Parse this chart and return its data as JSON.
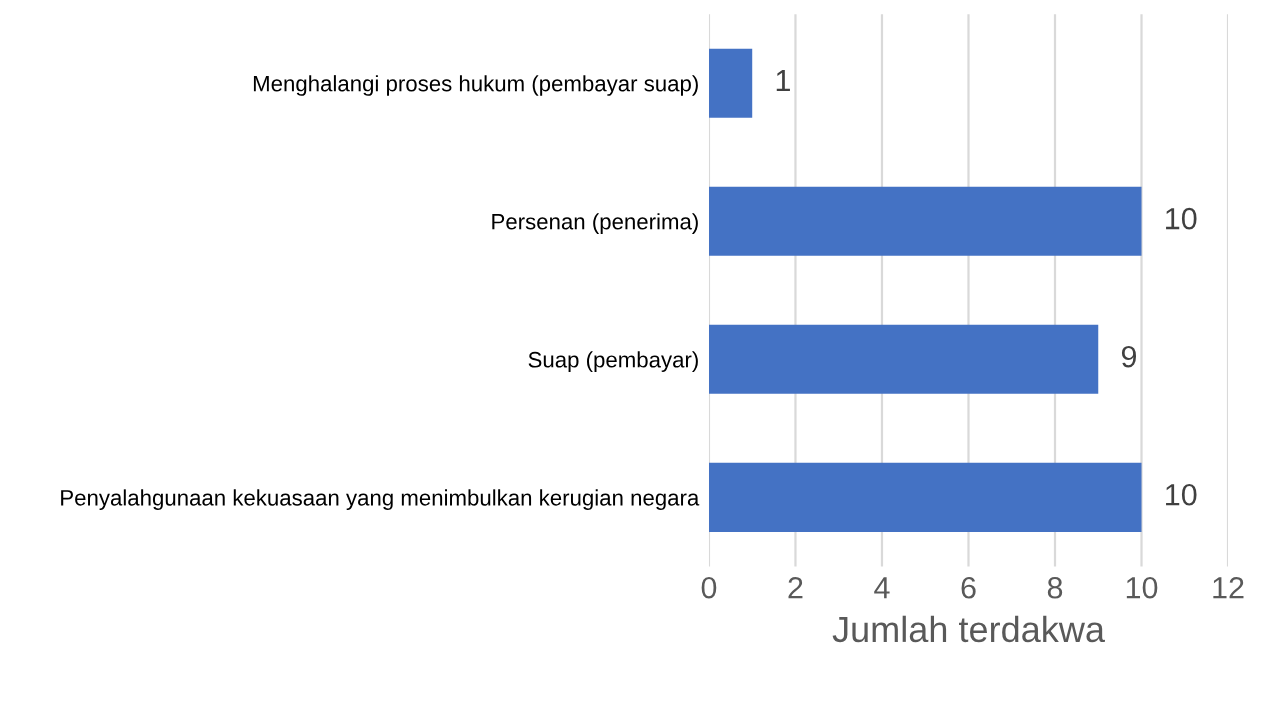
{
  "chart_data": {
    "type": "bar",
    "orientation": "horizontal",
    "xlabel": "Jumlah terdakwa",
    "categories": [
      "Menghalangi proses hukum (pembayar suap)",
      "Persenan (penerima)",
      "Suap (pembayar)",
      "Penyalahgunaan kekuasaan yang menimbulkan kerugian negara"
    ],
    "values": [
      1,
      10,
      9,
      10
    ],
    "color": "#4472c4",
    "xlim": [
      0,
      12
    ],
    "xticks": [
      0,
      2,
      4,
      6,
      8,
      10,
      12
    ],
    "grid": "x",
    "data_labels": true
  }
}
